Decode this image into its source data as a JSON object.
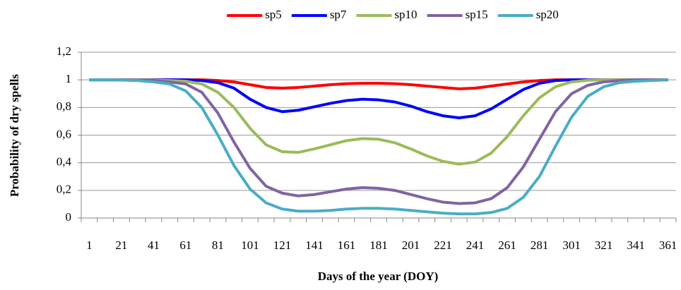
{
  "chart_data": {
    "type": "line",
    "xlabel": "Days of the year (DOY)",
    "ylabel": "Probability of dry spells",
    "categories": [
      1,
      null,
      21,
      null,
      41,
      null,
      61,
      null,
      81,
      null,
      101,
      null,
      121,
      null,
      141,
      null,
      161,
      null,
      181,
      null,
      201,
      null,
      221,
      null,
      241,
      null,
      261,
      null,
      281,
      null,
      301,
      null,
      321,
      null,
      341,
      null,
      361
    ],
    "series": [
      {
        "name": "sp5",
        "color": "#ff0000",
        "values": [
          1,
          1,
          1,
          1,
          1,
          1,
          1,
          1,
          0.995,
          0.985,
          0.965,
          0.945,
          0.94,
          0.945,
          0.955,
          0.965,
          0.972,
          0.975,
          0.975,
          0.972,
          0.965,
          0.955,
          0.945,
          0.935,
          0.94,
          0.955,
          0.97,
          0.985,
          0.995,
          1,
          1,
          1,
          1,
          1,
          1,
          1,
          1
        ]
      },
      {
        "name": "sp7",
        "color": "#0000ff",
        "values": [
          1,
          1,
          1,
          1,
          1,
          1,
          1,
          0.995,
          0.98,
          0.94,
          0.86,
          0.8,
          0.77,
          0.78,
          0.805,
          0.83,
          0.85,
          0.86,
          0.855,
          0.84,
          0.81,
          0.77,
          0.74,
          0.725,
          0.74,
          0.79,
          0.86,
          0.93,
          0.975,
          0.995,
          1,
          1,
          1,
          1,
          1,
          1,
          1
        ]
      },
      {
        "name": "sp10",
        "color": "#9bbb59",
        "values": [
          1,
          1,
          1,
          1,
          0.998,
          0.995,
          0.99,
          0.97,
          0.91,
          0.8,
          0.65,
          0.53,
          0.48,
          0.475,
          0.5,
          0.53,
          0.56,
          0.575,
          0.57,
          0.545,
          0.5,
          0.45,
          0.41,
          0.39,
          0.405,
          0.47,
          0.59,
          0.74,
          0.87,
          0.95,
          0.985,
          0.997,
          1,
          1,
          1,
          1,
          1
        ]
      },
      {
        "name": "sp15",
        "color": "#8064a2",
        "values": [
          1,
          1,
          1,
          0.998,
          0.995,
          0.985,
          0.97,
          0.91,
          0.76,
          0.55,
          0.36,
          0.23,
          0.18,
          0.16,
          0.17,
          0.19,
          0.21,
          0.22,
          0.215,
          0.2,
          0.17,
          0.14,
          0.115,
          0.105,
          0.11,
          0.14,
          0.22,
          0.37,
          0.57,
          0.77,
          0.9,
          0.96,
          0.985,
          0.995,
          1,
          1,
          1
        ]
      },
      {
        "name": "sp20",
        "color": "#4bacc6",
        "values": [
          1,
          1,
          0.998,
          0.995,
          0.985,
          0.97,
          0.92,
          0.8,
          0.6,
          0.38,
          0.21,
          0.11,
          0.065,
          0.05,
          0.05,
          0.055,
          0.065,
          0.07,
          0.07,
          0.065,
          0.055,
          0.045,
          0.035,
          0.03,
          0.03,
          0.04,
          0.07,
          0.15,
          0.3,
          0.52,
          0.73,
          0.88,
          0.95,
          0.98,
          0.99,
          0.995,
          1
        ]
      }
    ],
    "ylim": [
      0,
      1.2
    ],
    "yticks": [
      0,
      {
        "value": 0.2,
        "label": "0,2"
      },
      {
        "value": 0.4,
        "label": "0,4"
      },
      {
        "value": 0.6,
        "label": "0,6"
      },
      {
        "value": 0.8,
        "label": "0,8"
      },
      1,
      {
        "value": 1.2,
        "label": "1,2"
      }
    ],
    "grid": true,
    "legend": "top"
  }
}
